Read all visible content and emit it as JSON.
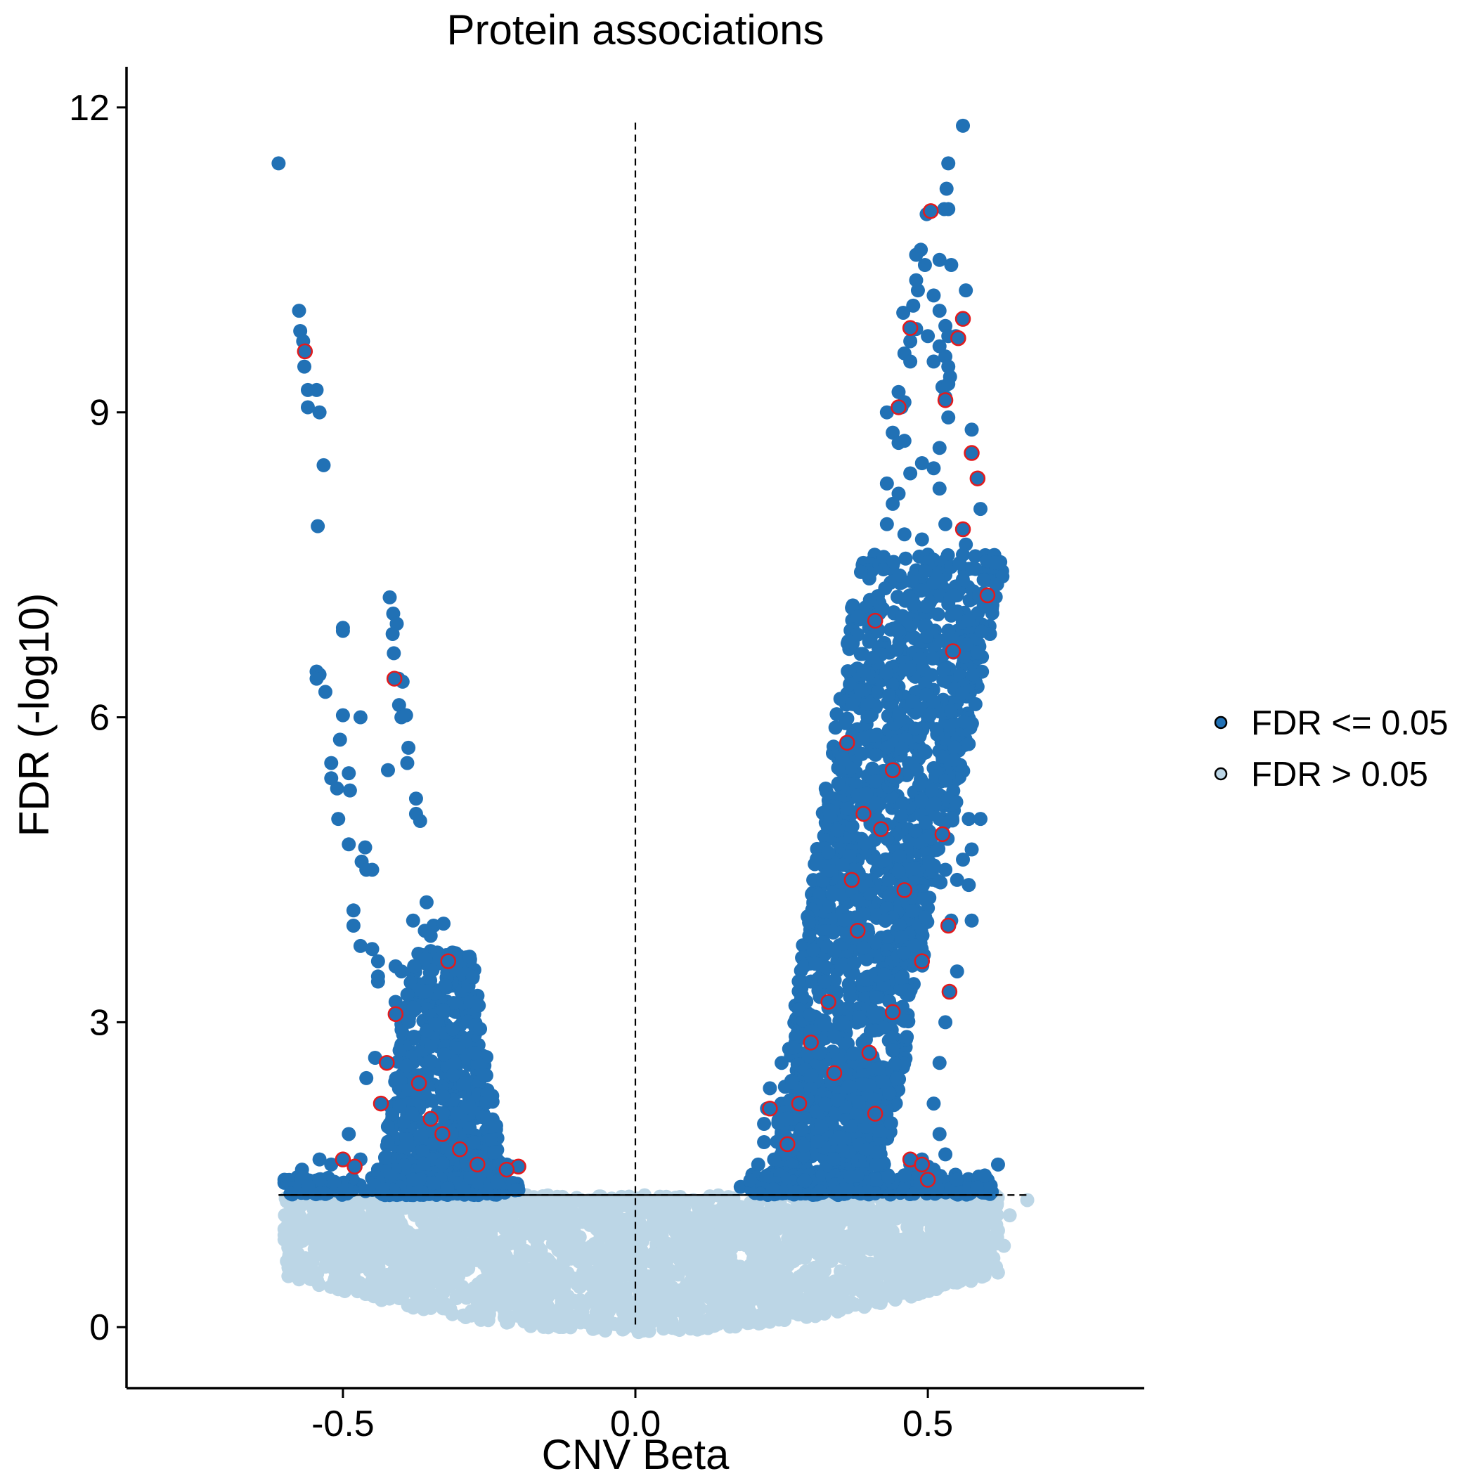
{
  "chart_data": {
    "type": "scatter",
    "title": "Protein associations",
    "xlabel": "CNV Beta",
    "ylabel": "FDR (-log10)",
    "xlim": [
      -0.87,
      0.87
    ],
    "ylim": [
      -0.6,
      12.4
    ],
    "x_ticks": [
      -0.5,
      0.0,
      0.5
    ],
    "x_tick_labels": [
      "-0.5",
      "0.0",
      "0.5"
    ],
    "y_ticks": [
      0,
      3,
      6,
      9,
      12
    ],
    "y_tick_labels": [
      "0",
      "3",
      "6",
      "9",
      "12"
    ],
    "significance_threshold": 1.3,
    "vertical_reference": 0.0,
    "grid": false,
    "legend_position": "right",
    "series": [
      {
        "name": "FDR <= 0.05",
        "color": "#2171b5",
        "points": [
          [
            -0.61,
            11.45
          ],
          [
            -0.575,
            10.0
          ],
          [
            -0.573,
            9.8
          ],
          [
            -0.568,
            9.7
          ],
          [
            -0.565,
            9.6
          ],
          [
            -0.566,
            9.45
          ],
          [
            -0.56,
            9.22
          ],
          [
            -0.545,
            9.22
          ],
          [
            -0.56,
            9.05
          ],
          [
            -0.54,
            9.0
          ],
          [
            -0.533,
            8.48
          ],
          [
            -0.543,
            7.88
          ],
          [
            -0.42,
            7.18
          ],
          [
            -0.414,
            7.02
          ],
          [
            -0.408,
            6.92
          ],
          [
            -0.415,
            6.82
          ],
          [
            -0.413,
            6.63
          ],
          [
            -0.5,
            6.85
          ],
          [
            -0.5,
            6.88
          ],
          [
            -0.545,
            6.45
          ],
          [
            -0.54,
            6.42
          ],
          [
            -0.545,
            6.38
          ],
          [
            -0.405,
            6.38
          ],
          [
            -0.398,
            6.35
          ],
          [
            -0.404,
            6.12
          ],
          [
            -0.4,
            6.0
          ],
          [
            -0.392,
            6.02
          ],
          [
            -0.53,
            6.25
          ],
          [
            -0.5,
            6.02
          ],
          [
            -0.47,
            6.0
          ],
          [
            -0.388,
            5.7
          ],
          [
            -0.39,
            5.55
          ],
          [
            -0.423,
            5.48
          ],
          [
            -0.505,
            5.78
          ],
          [
            -0.49,
            5.45
          ],
          [
            -0.52,
            5.55
          ],
          [
            -0.52,
            5.4
          ],
          [
            -0.51,
            5.3
          ],
          [
            -0.488,
            5.28
          ],
          [
            -0.375,
            5.2
          ],
          [
            -0.375,
            5.05
          ],
          [
            -0.368,
            4.98
          ],
          [
            -0.508,
            5.0
          ],
          [
            -0.49,
            4.75
          ],
          [
            -0.462,
            4.72
          ],
          [
            -0.468,
            4.58
          ],
          [
            -0.46,
            4.5
          ],
          [
            -0.45,
            4.5
          ],
          [
            -0.482,
            4.1
          ],
          [
            -0.482,
            3.95
          ],
          [
            -0.357,
            4.18
          ],
          [
            -0.38,
            4.0
          ],
          [
            -0.345,
            3.95
          ],
          [
            -0.328,
            3.97
          ],
          [
            -0.36,
            3.9
          ],
          [
            -0.35,
            3.85
          ],
          [
            -0.47,
            3.75
          ],
          [
            -0.45,
            3.72
          ],
          [
            -0.44,
            3.6
          ],
          [
            -0.41,
            3.55
          ],
          [
            -0.4,
            3.5
          ],
          [
            -0.35,
            3.7
          ],
          [
            -0.34,
            3.62
          ],
          [
            -0.333,
            3.58
          ],
          [
            -0.44,
            3.45
          ],
          [
            -0.44,
            3.4
          ],
          [
            -0.41,
            3.2
          ],
          [
            -0.405,
            3.1
          ],
          [
            -0.4,
            2.98
          ],
          [
            -0.445,
            2.65
          ],
          [
            -0.425,
            2.6
          ],
          [
            -0.46,
            2.45
          ],
          [
            -0.49,
            1.9
          ],
          [
            -0.4,
            2.78
          ],
          [
            -0.38,
            2.7
          ],
          [
            -0.36,
            2.62
          ],
          [
            -0.34,
            2.58
          ],
          [
            -0.32,
            2.55
          ],
          [
            -0.3,
            2.45
          ],
          [
            -0.28,
            2.3
          ],
          [
            -0.27,
            2.2
          ],
          [
            -0.26,
            2.1
          ],
          [
            -0.25,
            2.0
          ],
          [
            -0.4,
            2.2
          ],
          [
            -0.37,
            2.15
          ],
          [
            -0.35,
            2.05
          ],
          [
            -0.33,
            2.1
          ],
          [
            -0.31,
            2.0
          ],
          [
            -0.29,
            1.9
          ],
          [
            -0.27,
            1.85
          ],
          [
            -0.42,
            2.0
          ],
          [
            -0.39,
            1.9
          ],
          [
            -0.36,
            1.85
          ],
          [
            -0.34,
            1.75
          ],
          [
            -0.3,
            1.72
          ],
          [
            -0.26,
            1.7
          ],
          [
            -0.24,
            1.65
          ],
          [
            -0.22,
            1.6
          ],
          [
            -0.21,
            1.58
          ],
          [
            -0.6,
            1.45
          ],
          [
            -0.6,
            1.42
          ],
          [
            -0.57,
            1.55
          ],
          [
            -0.54,
            1.65
          ],
          [
            -0.52,
            1.6
          ],
          [
            -0.47,
            1.65
          ],
          [
            -0.44,
            1.55
          ],
          [
            -0.41,
            1.5
          ],
          [
            -0.38,
            1.45
          ],
          [
            -0.35,
            1.5
          ],
          [
            -0.31,
            1.45
          ],
          [
            -0.27,
            1.42
          ],
          [
            -0.24,
            1.4
          ],
          [
            -0.2,
            1.35
          ],
          [
            -0.56,
            1.35
          ],
          [
            -0.5,
            1.38
          ],
          [
            -0.45,
            1.35
          ],
          [
            -0.42,
            1.4
          ],
          [
            -0.55,
            1.32
          ],
          [
            0.56,
            11.82
          ],
          [
            0.535,
            11.45
          ],
          [
            0.532,
            11.2
          ],
          [
            0.535,
            11.0
          ],
          [
            0.528,
            11.0
          ],
          [
            0.498,
            10.95
          ],
          [
            0.488,
            10.6
          ],
          [
            0.48,
            10.55
          ],
          [
            0.495,
            10.45
          ],
          [
            0.52,
            10.5
          ],
          [
            0.54,
            10.45
          ],
          [
            0.48,
            10.3
          ],
          [
            0.483,
            10.2
          ],
          [
            0.51,
            10.15
          ],
          [
            0.565,
            10.2
          ],
          [
            0.475,
            10.05
          ],
          [
            0.52,
            10.0
          ],
          [
            0.458,
            9.98
          ],
          [
            0.53,
            9.85
          ],
          [
            0.48,
            9.82
          ],
          [
            0.5,
            9.75
          ],
          [
            0.535,
            9.75
          ],
          [
            0.548,
            9.75
          ],
          [
            0.56,
            9.92
          ],
          [
            0.47,
            9.7
          ],
          [
            0.52,
            9.65
          ],
          [
            0.53,
            9.55
          ],
          [
            0.46,
            9.58
          ],
          [
            0.47,
            9.5
          ],
          [
            0.51,
            9.5
          ],
          [
            0.535,
            9.45
          ],
          [
            0.538,
            9.35
          ],
          [
            0.525,
            9.25
          ],
          [
            0.535,
            9.28
          ],
          [
            0.45,
            9.2
          ],
          [
            0.46,
            9.1
          ],
          [
            0.43,
            9.0
          ],
          [
            0.455,
            9.05
          ],
          [
            0.53,
            9.15
          ],
          [
            0.535,
            8.95
          ],
          [
            0.44,
            8.8
          ],
          [
            0.45,
            8.7
          ],
          [
            0.46,
            8.72
          ],
          [
            0.52,
            8.65
          ],
          [
            0.575,
            8.83
          ],
          [
            0.574,
            8.6
          ],
          [
            0.585,
            8.35
          ],
          [
            0.59,
            8.05
          ],
          [
            0.56,
            7.85
          ],
          [
            0.565,
            7.7
          ],
          [
            0.56,
            7.6
          ],
          [
            0.53,
            7.9
          ],
          [
            0.43,
            8.3
          ],
          [
            0.44,
            8.1
          ],
          [
            0.45,
            8.2
          ],
          [
            0.47,
            8.4
          ],
          [
            0.49,
            8.5
          ],
          [
            0.51,
            8.45
          ],
          [
            0.52,
            8.25
          ],
          [
            0.43,
            7.9
          ],
          [
            0.46,
            7.8
          ],
          [
            0.49,
            7.75
          ],
          [
            0.5,
            7.6
          ],
          [
            0.53,
            7.4
          ],
          [
            0.55,
            7.2
          ],
          [
            0.6,
            7.2
          ],
          [
            0.54,
            7.0
          ],
          [
            0.55,
            6.85
          ],
          [
            0.565,
            6.85
          ],
          [
            0.54,
            6.65
          ],
          [
            0.545,
            6.4
          ],
          [
            0.585,
            6.3
          ],
          [
            0.55,
            6.15
          ],
          [
            0.53,
            5.95
          ],
          [
            0.535,
            5.78
          ],
          [
            0.54,
            5.45
          ],
          [
            0.57,
            5.0
          ],
          [
            0.59,
            5.0
          ],
          [
            0.575,
            4.7
          ],
          [
            0.56,
            4.6
          ],
          [
            0.55,
            4.4
          ],
          [
            0.57,
            4.35
          ],
          [
            0.575,
            4.0
          ],
          [
            0.37,
            5.75
          ],
          [
            0.355,
            5.25
          ],
          [
            0.345,
            4.95
          ],
          [
            0.33,
            4.6
          ],
          [
            0.31,
            4.1
          ],
          [
            0.32,
            4.0
          ],
          [
            0.31,
            3.6
          ],
          [
            0.3,
            3.4
          ],
          [
            0.29,
            3.2
          ],
          [
            0.28,
            3.0
          ],
          [
            0.275,
            2.8
          ],
          [
            0.25,
            2.6
          ],
          [
            0.23,
            2.35
          ],
          [
            0.225,
            2.15
          ],
          [
            0.22,
            2.0
          ],
          [
            0.22,
            1.82
          ],
          [
            0.21,
            1.6
          ],
          [
            0.2,
            1.5
          ],
          [
            0.18,
            1.38
          ],
          [
            0.25,
            1.9
          ],
          [
            0.27,
            2.1
          ],
          [
            0.3,
            2.5
          ],
          [
            0.32,
            2.9
          ],
          [
            0.34,
            3.3
          ],
          [
            0.36,
            3.7
          ],
          [
            0.38,
            4.2
          ],
          [
            0.4,
            4.7
          ],
          [
            0.42,
            5.2
          ],
          [
            0.44,
            5.8
          ],
          [
            0.45,
            6.3
          ],
          [
            0.46,
            6.8
          ],
          [
            0.47,
            7.2
          ],
          [
            0.48,
            7.0
          ],
          [
            0.49,
            6.5
          ],
          [
            0.5,
            6.0
          ],
          [
            0.51,
            5.5
          ],
          [
            0.52,
            5.0
          ],
          [
            0.53,
            4.5
          ],
          [
            0.54,
            4.0
          ],
          [
            0.55,
            3.5
          ],
          [
            0.53,
            3.0
          ],
          [
            0.52,
            2.6
          ],
          [
            0.51,
            2.2
          ],
          [
            0.52,
            1.9
          ],
          [
            0.53,
            1.7
          ],
          [
            0.51,
            1.55
          ],
          [
            0.48,
            1.5
          ],
          [
            0.45,
            1.45
          ],
          [
            0.4,
            1.42
          ],
          [
            0.35,
            1.45
          ],
          [
            0.3,
            1.5
          ],
          [
            0.26,
            1.55
          ],
          [
            0.62,
            1.6
          ],
          [
            0.6,
            1.35
          ],
          [
            0.47,
            1.6
          ],
          [
            0.49,
            1.65
          ],
          [
            0.5,
            1.58
          ]
        ]
      },
      {
        "name": "FDR > 0.05",
        "color": "#bcd6e6",
        "points": [
          [
            0.0,
            0.0
          ],
          [
            0.02,
            0.05
          ],
          [
            -0.02,
            0.05
          ],
          [
            0.05,
            0.1
          ],
          [
            -0.05,
            0.1
          ],
          [
            0.1,
            0.25
          ],
          [
            -0.1,
            0.25
          ],
          [
            0.15,
            0.55
          ],
          [
            -0.15,
            0.55
          ],
          [
            0.2,
            1.0
          ],
          [
            -0.2,
            1.0
          ],
          [
            0.67,
            1.25
          ],
          [
            0.64,
            1.1
          ],
          [
            0.6,
            0.9
          ],
          [
            -0.58,
            0.95
          ],
          [
            -0.59,
            1.2
          ],
          [
            0.62,
            0.95
          ],
          [
            0.63,
            0.8
          ]
        ]
      }
    ],
    "highlight_outline_color": "#e31a1c",
    "highlighted_points": [
      [
        -0.565,
        9.6
      ],
      [
        -0.412,
        6.38
      ],
      [
        -0.32,
        3.6
      ],
      [
        -0.41,
        3.08
      ],
      [
        -0.425,
        2.6
      ],
      [
        -0.435,
        2.2
      ],
      [
        -0.2,
        1.58
      ],
      [
        -0.22,
        1.55
      ],
      [
        -0.5,
        1.65
      ],
      [
        -0.48,
        1.58
      ],
      [
        -0.37,
        2.4
      ],
      [
        -0.35,
        2.05
      ],
      [
        -0.33,
        1.9
      ],
      [
        -0.3,
        1.75
      ],
      [
        -0.27,
        1.6
      ],
      [
        0.505,
        10.98
      ],
      [
        0.47,
        9.83
      ],
      [
        0.56,
        9.92
      ],
      [
        0.552,
        9.73
      ],
      [
        0.53,
        9.12
      ],
      [
        0.45,
        9.05
      ],
      [
        0.575,
        8.6
      ],
      [
        0.585,
        8.35
      ],
      [
        0.56,
        7.85
      ],
      [
        0.602,
        7.2
      ],
      [
        0.41,
        6.95
      ],
      [
        0.543,
        6.65
      ],
      [
        0.362,
        5.75
      ],
      [
        0.44,
        5.48
      ],
      [
        0.525,
        4.85
      ],
      [
        0.535,
        3.95
      ],
      [
        0.537,
        3.3
      ],
      [
        0.49,
        3.6
      ],
      [
        0.46,
        4.3
      ],
      [
        0.42,
        4.9
      ],
      [
        0.39,
        5.05
      ],
      [
        0.38,
        3.9
      ],
      [
        0.33,
        3.2
      ],
      [
        0.3,
        2.8
      ],
      [
        0.34,
        2.5
      ],
      [
        0.28,
        2.2
      ],
      [
        0.23,
        2.15
      ],
      [
        0.26,
        1.8
      ],
      [
        0.47,
        1.65
      ],
      [
        0.49,
        1.6
      ],
      [
        0.5,
        1.45
      ],
      [
        0.4,
        2.7
      ],
      [
        0.44,
        3.1
      ],
      [
        0.37,
        4.4
      ],
      [
        0.41,
        2.1
      ]
    ]
  },
  "legend": {
    "items": [
      {
        "label": "FDR <= 0.05",
        "color": "#2171b5"
      },
      {
        "label": "FDR > 0.05",
        "color": "#bcd6e6"
      }
    ]
  }
}
